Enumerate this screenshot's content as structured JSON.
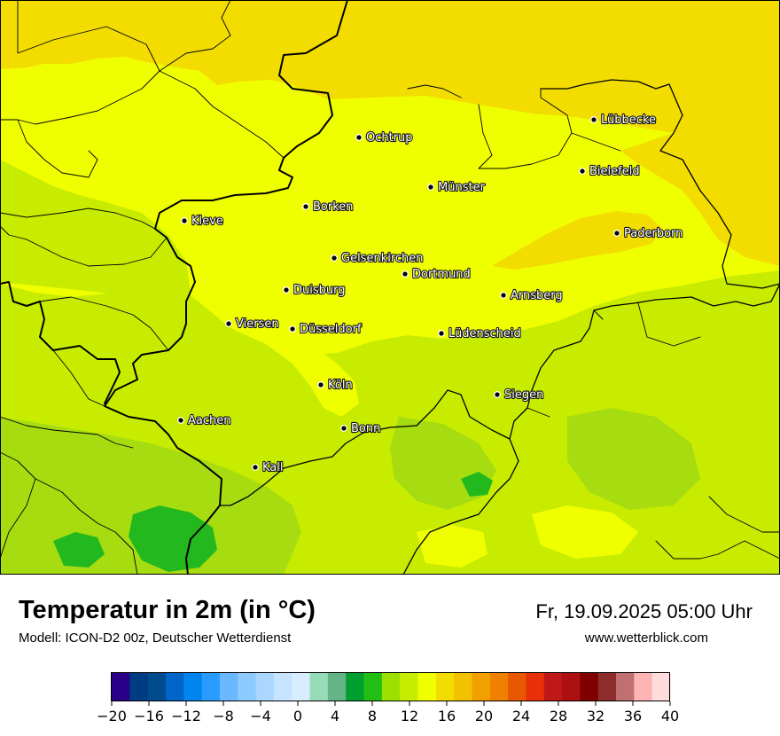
{
  "map": {
    "cities": [
      {
        "name": "Ochtrup"
      },
      {
        "name": "Lübbecke"
      },
      {
        "name": "Bielefeld"
      },
      {
        "name": "Münster"
      },
      {
        "name": "Borken"
      },
      {
        "name": "Kleve"
      },
      {
        "name": "Paderborn"
      },
      {
        "name": "Gelsenkirchen"
      },
      {
        "name": "Dortmund"
      },
      {
        "name": "Duisburg"
      },
      {
        "name": "Arnsberg"
      },
      {
        "name": "Viersen"
      },
      {
        "name": "Düsseldorf"
      },
      {
        "name": "Lüdenscheid"
      },
      {
        "name": "Köln"
      },
      {
        "name": "Siegen"
      },
      {
        "name": "Aachen"
      },
      {
        "name": "Bonn"
      },
      {
        "name": "Kall"
      }
    ],
    "colors": {
      "north": "#f3dc00",
      "central": "#f0ff00",
      "south": "#c8ec00",
      "green_light": "#a6dc10",
      "green": "#22b81e",
      "border": "#000000"
    }
  },
  "footer": {
    "title": "Temperatur in 2m (in °C)",
    "subtitle": "Modell: ICON-D2 00z, Deutscher Wetterdienst",
    "datetime": "Fr, 19.09.2025 05:00 Uhr",
    "website": "www.wetterblick.com"
  },
  "legend": {
    "min": -20,
    "max": 40,
    "tick_labels": [
      "−20",
      "−16",
      "−12",
      "−8",
      "−4",
      "0",
      "4",
      "8",
      "12",
      "16",
      "20",
      "24",
      "28",
      "32",
      "36",
      "40"
    ],
    "colors": [
      "#2a0088",
      "#003c82",
      "#004a8e",
      "#0064c8",
      "#0084ee",
      "#2a9cff",
      "#6cb8ff",
      "#8ccaff",
      "#aad6ff",
      "#c6e4ff",
      "#d8ecff",
      "#96dcb8",
      "#64b488",
      "#00a030",
      "#22be14",
      "#9ce000",
      "#c8ec00",
      "#f0ff00",
      "#f3dc00",
      "#f2c200",
      "#f2a000",
      "#f08000",
      "#e85800",
      "#e83008",
      "#c01818",
      "#ac1010",
      "#800000",
      "#8c2c2c",
      "#c07070",
      "#ffb4b4",
      "#ffdcdc"
    ]
  }
}
